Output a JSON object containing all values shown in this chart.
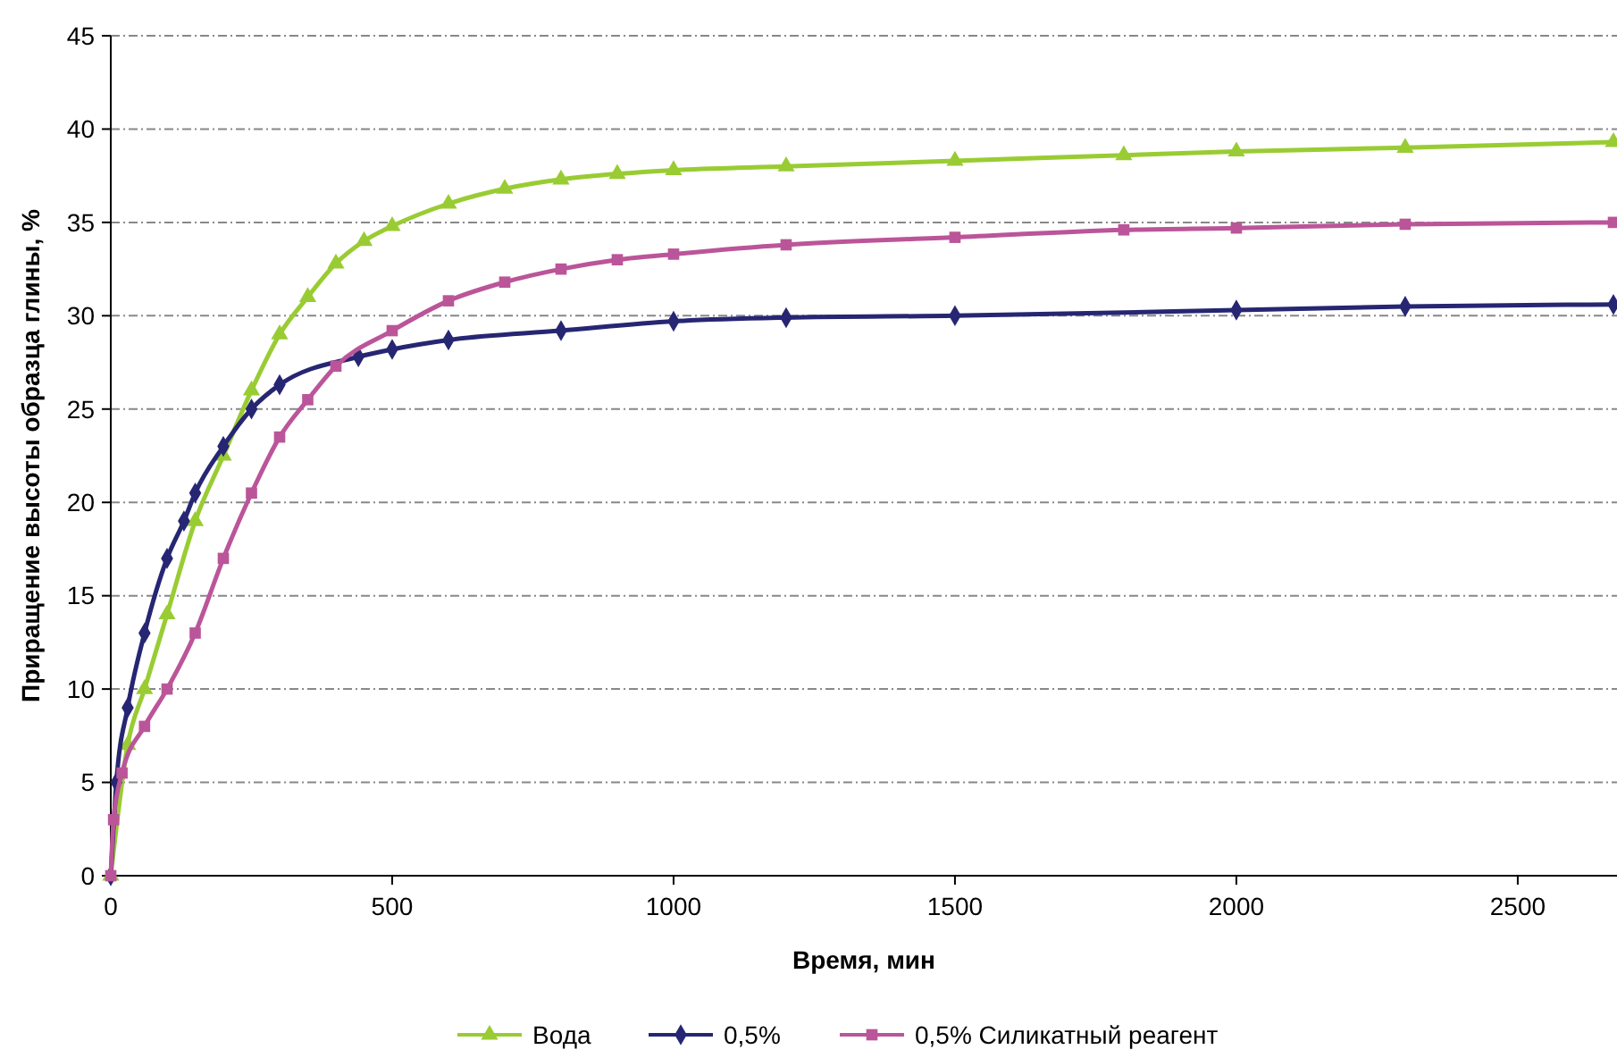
{
  "chart_data": {
    "type": "line",
    "xlabel": "Время, мин",
    "ylabel": "Приращение высоты образца глины, %",
    "xlim": [
      0,
      2670
    ],
    "xticks": [
      0,
      500,
      1000,
      1500,
      2000,
      2500
    ],
    "ylim": [
      0,
      45
    ],
    "yticks": [
      0,
      5,
      10,
      15,
      20,
      25,
      30,
      35,
      40,
      45
    ],
    "grid": "y",
    "legend": "bottom",
    "series": [
      {
        "name": "Вода",
        "color": "#99cc33",
        "marker": "triangle",
        "x": [
          0,
          30,
          60,
          100,
          150,
          200,
          250,
          300,
          350,
          400,
          450,
          500,
          600,
          700,
          800,
          900,
          1000,
          1200,
          1500,
          1800,
          2000,
          2300,
          2670
        ],
        "values": [
          0,
          7,
          10,
          14,
          19,
          22.5,
          26,
          29,
          31,
          32.8,
          34,
          34.8,
          36,
          36.8,
          37.3,
          37.6,
          37.8,
          38,
          38.3,
          38.6,
          38.8,
          39,
          39.3
        ]
      },
      {
        "name": "0,5%",
        "color": "#262673",
        "marker": "diamond",
        "x": [
          0,
          10,
          30,
          60,
          100,
          130,
          150,
          200,
          250,
          300,
          440,
          500,
          600,
          800,
          1000,
          1200,
          1500,
          2000,
          2300,
          2670
        ],
        "values": [
          0,
          5,
          9,
          13,
          17,
          19,
          20.5,
          23,
          25,
          26.3,
          27.8,
          28.2,
          28.7,
          29.2,
          29.7,
          29.9,
          30,
          30.3,
          30.5,
          30.6
        ]
      },
      {
        "name": "0,5% Силикатный реагент",
        "color": "#bb5599",
        "marker": "square",
        "x": [
          0,
          5,
          20,
          60,
          100,
          150,
          200,
          250,
          300,
          350,
          400,
          500,
          600,
          700,
          800,
          900,
          1000,
          1200,
          1500,
          1800,
          2000,
          2300,
          2670
        ],
        "values": [
          0,
          3,
          5.5,
          8,
          10,
          13,
          17,
          20.5,
          23.5,
          25.5,
          27.3,
          29.2,
          30.8,
          31.8,
          32.5,
          33,
          33.3,
          33.8,
          34.2,
          34.6,
          34.7,
          34.9,
          35
        ]
      }
    ]
  }
}
